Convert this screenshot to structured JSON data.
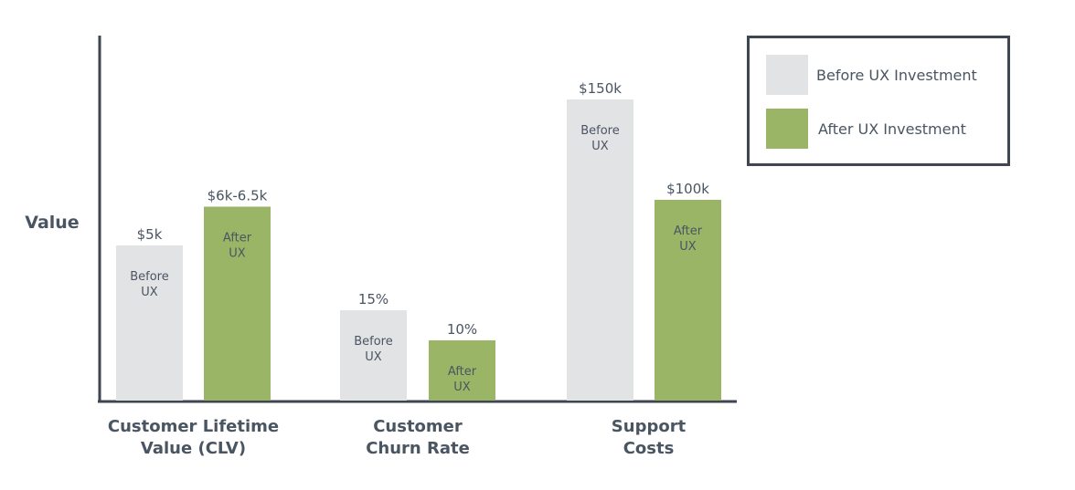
{
  "chart_data": {
    "type": "bar",
    "ylabel": "Value",
    "categories": [
      "Customer Lifetime Value (CLV)",
      "Customer Churn Rate",
      "Support Costs"
    ],
    "category_lines": [
      [
        "Customer Lifetime",
        "Value (CLV)"
      ],
      [
        "Customer",
        "Churn Rate"
      ],
      [
        "Support",
        "Costs"
      ]
    ],
    "series": [
      {
        "name": "Before UX Investment",
        "inner_label": [
          "Before",
          "UX"
        ],
        "color": "#e2e3e5",
        "values": [
          5,
          15,
          150
        ],
        "value_labels": [
          "$5k",
          "15%",
          "$150k"
        ]
      },
      {
        "name": "After UX Investment",
        "inner_label": [
          "After",
          "UX"
        ],
        "color": "#9bb567",
        "values": [
          6.25,
          10,
          100
        ],
        "value_labels": [
          "$6k-6.5k",
          "10%",
          "$100k"
        ]
      }
    ],
    "legend_position": "top-right",
    "grid": false
  }
}
